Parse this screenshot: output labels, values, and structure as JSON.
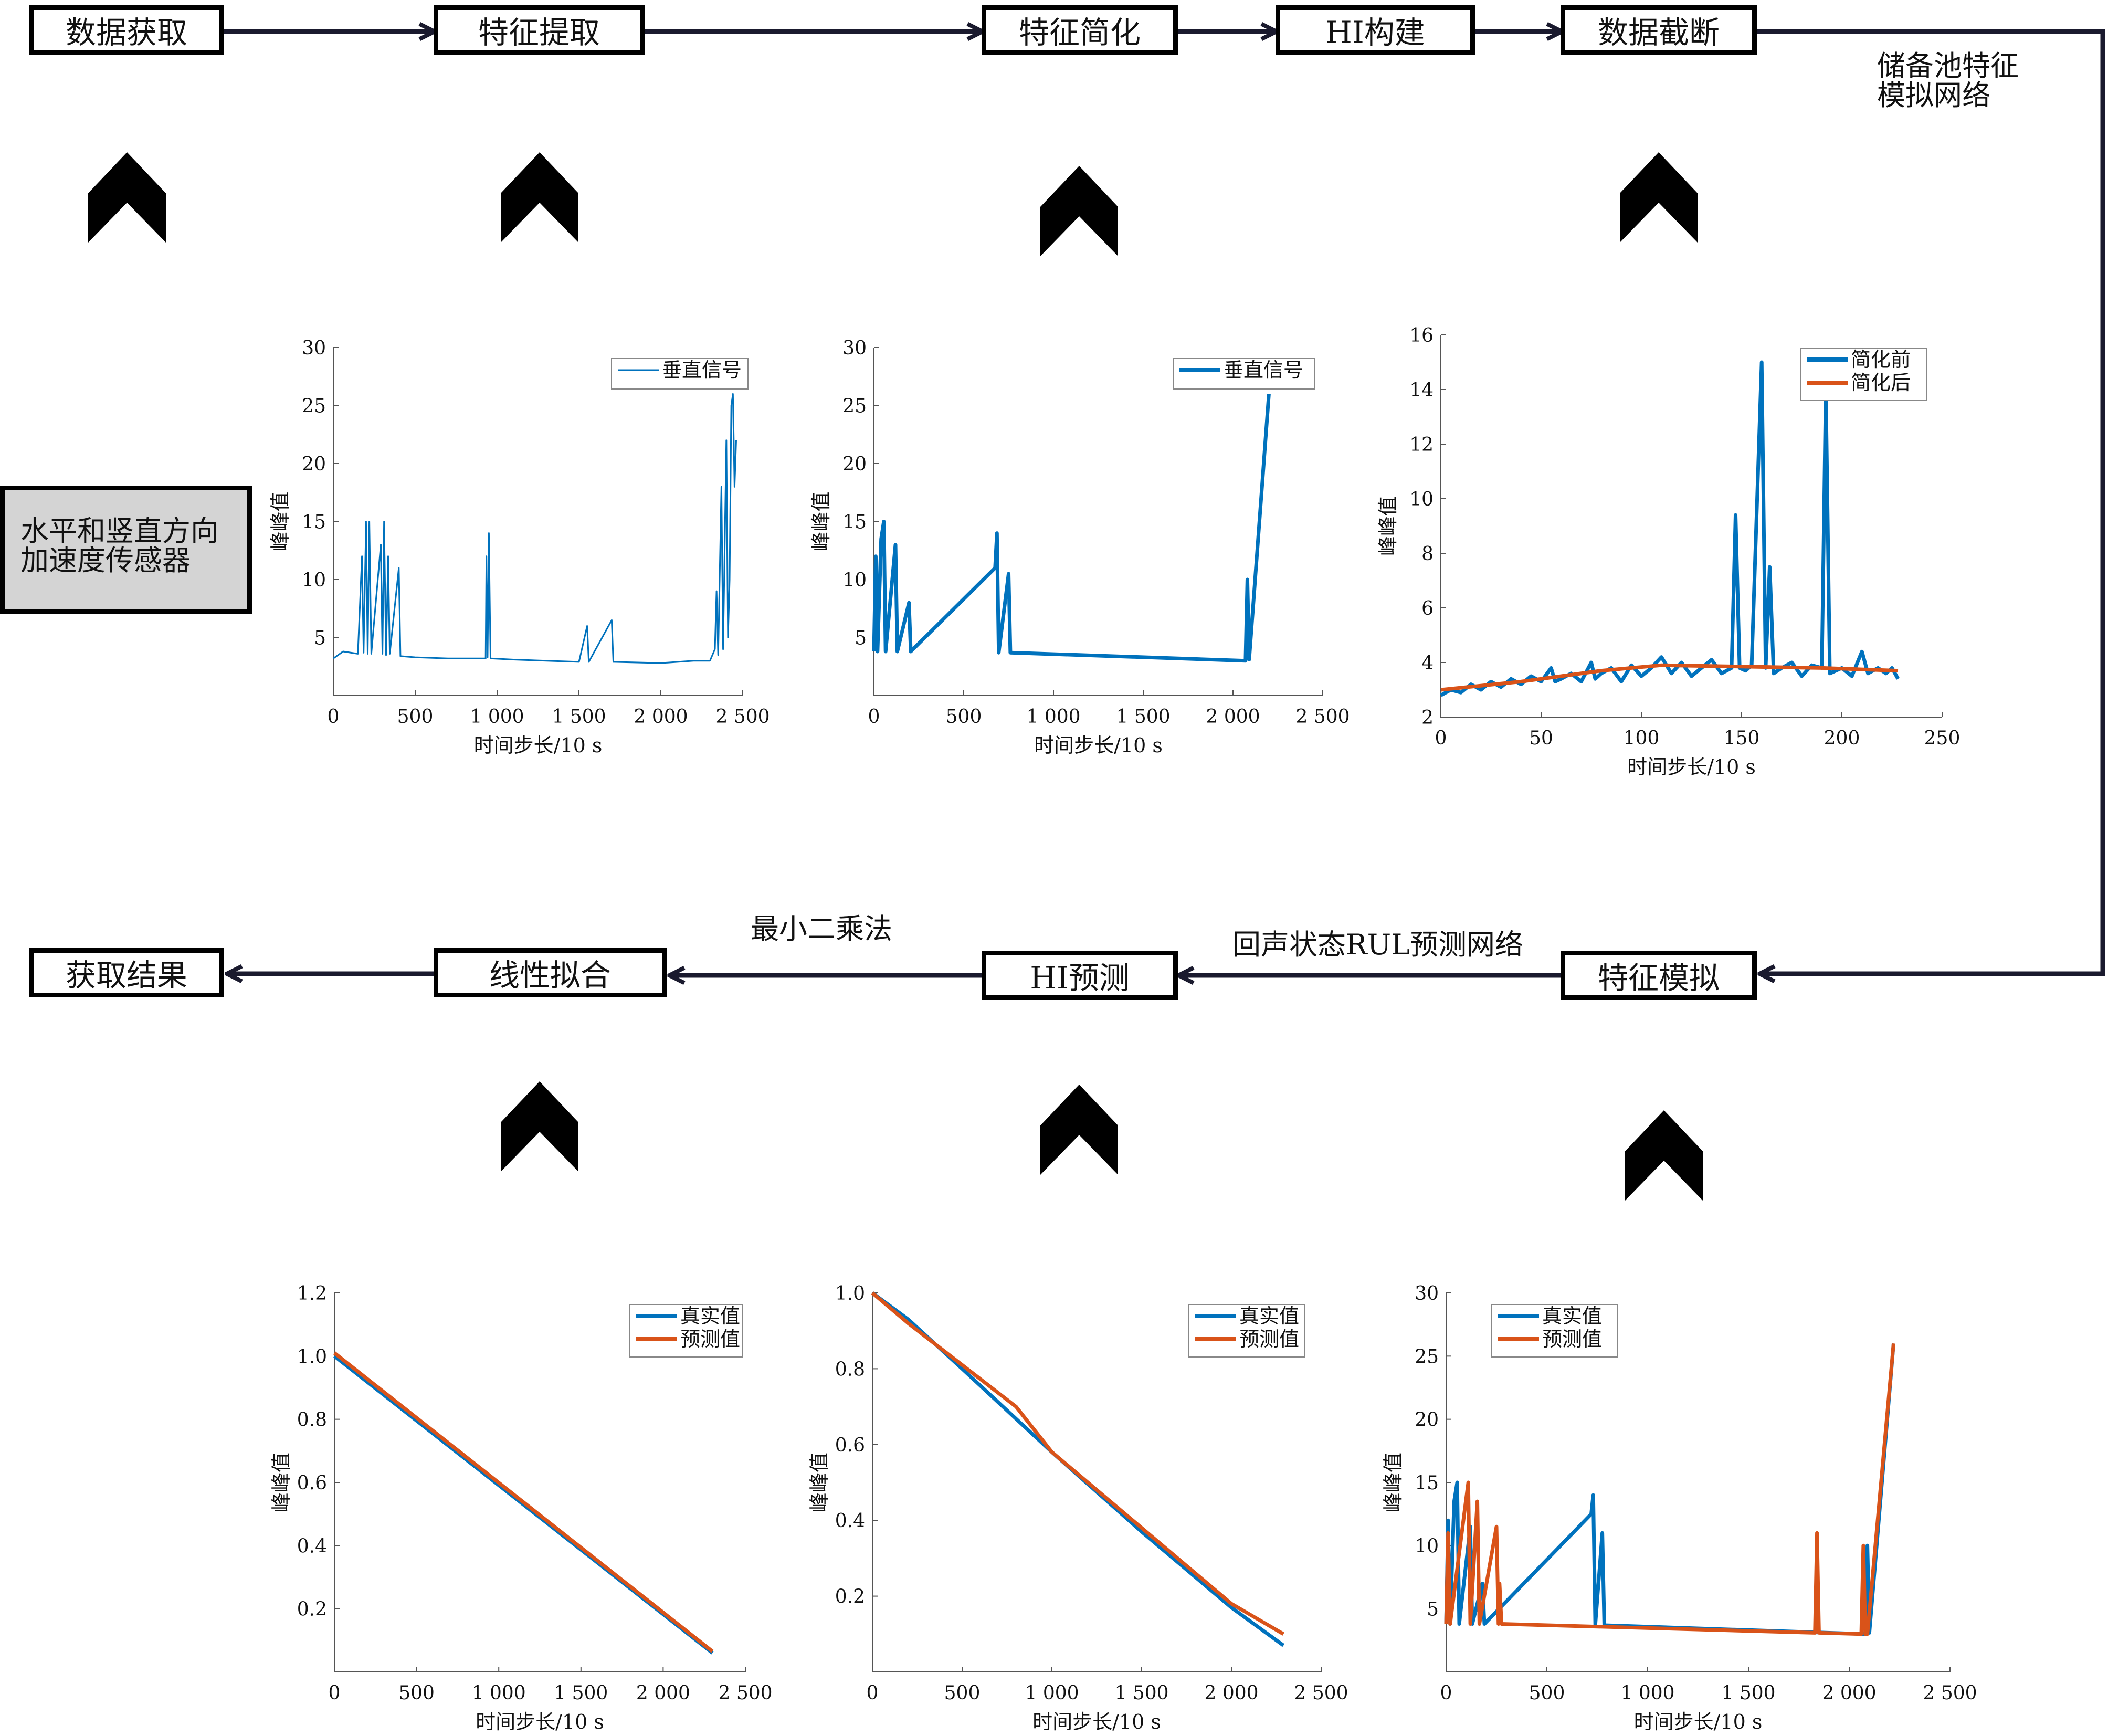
{
  "pipeline": {
    "top": [
      {
        "id": "data-acquire",
        "label": "数据获取"
      },
      {
        "id": "feature-extract",
        "label": "特征提取"
      },
      {
        "id": "feature-simplify",
        "label": "特征简化"
      },
      {
        "id": "hi-build",
        "label": "HI构建"
      },
      {
        "id": "data-truncate",
        "label": "数据截断"
      }
    ],
    "bottom": [
      {
        "id": "result",
        "label": "获取结果"
      },
      {
        "id": "linear-fit",
        "label": "线性拟合"
      },
      {
        "id": "hi-predict",
        "label": "HI预测"
      },
      {
        "id": "feature-sim",
        "label": "特征模拟"
      }
    ]
  },
  "sensor": {
    "line1": "水平和竖直方向",
    "line2": "加速度传感器"
  },
  "labels": {
    "reservoir_line1": "储备池特征",
    "reservoir_line2": "模拟网络",
    "echo_rul": "回声状态RUL预测网络",
    "least_squares": "最小二乘法"
  },
  "chart_data": [
    {
      "id": "raw-signal",
      "type": "line",
      "xlabel": "时间步长/10 s",
      "ylabel": "峰峰值",
      "xlim": [
        0,
        2500
      ],
      "ylim": [
        0,
        30
      ],
      "xticks": [
        "0",
        "500",
        "1 000",
        "1 500",
        "2 000",
        "2 500"
      ],
      "yticks": [
        "5",
        "10",
        "15",
        "20",
        "25",
        "30"
      ],
      "series": [
        {
          "name": "垂直信号",
          "color": "#0072BD",
          "points": [
            [
              0,
              3.2
            ],
            [
              60,
              3.8
            ],
            [
              150,
              3.6
            ],
            [
              175,
              12
            ],
            [
              185,
              3.7
            ],
            [
              200,
              15
            ],
            [
              210,
              3.6
            ],
            [
              220,
              15
            ],
            [
              232,
              3.6
            ],
            [
              290,
              13
            ],
            [
              300,
              3.6
            ],
            [
              310,
              15
            ],
            [
              322,
              3.5
            ],
            [
              335,
              12
            ],
            [
              345,
              3.6
            ],
            [
              400,
              11
            ],
            [
              410,
              3.4
            ],
            [
              500,
              3.3
            ],
            [
              700,
              3.2
            ],
            [
              930,
              3.2
            ],
            [
              935,
              12
            ],
            [
              942,
              3.3
            ],
            [
              950,
              14
            ],
            [
              960,
              3.2
            ],
            [
              1100,
              3.1
            ],
            [
              1500,
              2.9
            ],
            [
              1550,
              6
            ],
            [
              1560,
              2.9
            ],
            [
              1700,
              6.5
            ],
            [
              1710,
              2.9
            ],
            [
              2000,
              2.8
            ],
            [
              2200,
              3
            ],
            [
              2300,
              3
            ],
            [
              2330,
              4
            ],
            [
              2340,
              9
            ],
            [
              2350,
              3.5
            ],
            [
              2370,
              18
            ],
            [
              2380,
              4
            ],
            [
              2400,
              22
            ],
            [
              2410,
              5
            ],
            [
              2420,
              10
            ],
            [
              2430,
              25
            ],
            [
              2440,
              26
            ],
            [
              2450,
              18
            ],
            [
              2460,
              22
            ]
          ]
        }
      ]
    },
    {
      "id": "simplified",
      "type": "line",
      "xlabel": "时间步长/10 s",
      "ylabel": "峰峰值",
      "xlim": [
        0,
        2500
      ],
      "ylim": [
        0,
        30
      ],
      "xticks": [
        "0",
        "500",
        "1 000",
        "1 500",
        "2 000",
        "2 500"
      ],
      "yticks": [
        "5",
        "10",
        "15",
        "20",
        "25",
        "30"
      ],
      "series": [
        {
          "name": "垂直信号",
          "color": "#0072BD",
          "points": [
            [
              0,
              3.8
            ],
            [
              10,
              12
            ],
            [
              20,
              3.8
            ],
            [
              40,
              13.5
            ],
            [
              55,
              15
            ],
            [
              65,
              3.8
            ],
            [
              120,
              13
            ],
            [
              130,
              3.8
            ],
            [
              195,
              8
            ],
            [
              205,
              3.8
            ],
            [
              675,
              11
            ],
            [
              685,
              14
            ],
            [
              695,
              3.7
            ],
            [
              750,
              10.5
            ],
            [
              760,
              3.7
            ],
            [
              2070,
              3
            ],
            [
              2080,
              10
            ],
            [
              2090,
              3.1
            ],
            [
              2200,
              26
            ]
          ]
        }
      ]
    },
    {
      "id": "hi-construct",
      "type": "line",
      "xlabel": "时间步长/10 s",
      "ylabel": "峰峰值",
      "xlim": [
        0,
        250
      ],
      "ylim": [
        2,
        16
      ],
      "xticks": [
        "0",
        "50",
        "100",
        "150",
        "200",
        "250"
      ],
      "yticks": [
        "2",
        "4",
        "6",
        "8",
        "10",
        "12",
        "14",
        "16"
      ],
      "series": [
        {
          "name": "简化前",
          "color": "#0072BD",
          "points": [
            [
              0,
              2.8
            ],
            [
              5,
              3
            ],
            [
              10,
              2.9
            ],
            [
              15,
              3.2
            ],
            [
              20,
              3
            ],
            [
              25,
              3.3
            ],
            [
              30,
              3.1
            ],
            [
              35,
              3.4
            ],
            [
              40,
              3.2
            ],
            [
              45,
              3.5
            ],
            [
              50,
              3.3
            ],
            [
              55,
              3.8
            ],
            [
              57,
              3.3
            ],
            [
              60,
              3.4
            ],
            [
              65,
              3.6
            ],
            [
              70,
              3.3
            ],
            [
              75,
              4
            ],
            [
              77,
              3.4
            ],
            [
              80,
              3.6
            ],
            [
              85,
              3.8
            ],
            [
              90,
              3.3
            ],
            [
              95,
              3.9
            ],
            [
              100,
              3.5
            ],
            [
              105,
              3.8
            ],
            [
              110,
              4.2
            ],
            [
              115,
              3.6
            ],
            [
              120,
              4
            ],
            [
              125,
              3.5
            ],
            [
              130,
              3.8
            ],
            [
              135,
              4.1
            ],
            [
              140,
              3.6
            ],
            [
              145,
              3.8
            ],
            [
              147,
              9.4
            ],
            [
              149,
              3.8
            ],
            [
              152,
              3.7
            ],
            [
              155,
              3.9
            ],
            [
              160,
              15
            ],
            [
              162,
              3.8
            ],
            [
              164,
              7.5
            ],
            [
              166,
              3.6
            ],
            [
              170,
              3.8
            ],
            [
              175,
              4
            ],
            [
              180,
              3.5
            ],
            [
              185,
              3.9
            ],
            [
              190,
              3.8
            ],
            [
              192,
              14
            ],
            [
              194,
              3.6
            ],
            [
              200,
              3.8
            ],
            [
              205,
              3.5
            ],
            [
              210,
              4.4
            ],
            [
              213,
              3.6
            ],
            [
              218,
              3.8
            ],
            [
              222,
              3.6
            ],
            [
              225,
              3.8
            ],
            [
              228,
              3.4
            ]
          ]
        },
        {
          "name": "简化后",
          "color": "#D95319",
          "points": [
            [
              0,
              3
            ],
            [
              40,
              3.3
            ],
            [
              80,
              3.7
            ],
            [
              110,
              3.9
            ],
            [
              150,
              3.85
            ],
            [
              190,
              3.8
            ],
            [
              228,
              3.7
            ]
          ]
        }
      ]
    },
    {
      "id": "feature-fit",
      "type": "line",
      "xlabel": "时间步长/10 s",
      "ylabel": "峰峰值",
      "xlim": [
        0,
        2500
      ],
      "ylim": [
        0,
        30
      ],
      "xticks": [
        "0",
        "500",
        "1 000",
        "1 500",
        "2 000",
        "2 500"
      ],
      "yticks": [
        "5",
        "10",
        "15",
        "20",
        "25",
        "30"
      ],
      "series": [
        {
          "name": "真实值",
          "color": "#0072BD",
          "points": [
            [
              0,
              3.8
            ],
            [
              10,
              12
            ],
            [
              20,
              3.8
            ],
            [
              40,
              13.5
            ],
            [
              55,
              15
            ],
            [
              65,
              3.8
            ],
            [
              120,
              11.5
            ],
            [
              130,
              3.8
            ],
            [
              180,
              7
            ],
            [
              190,
              3.8
            ],
            [
              720,
              12.5
            ],
            [
              730,
              14
            ],
            [
              740,
              3.7
            ],
            [
              775,
              11
            ],
            [
              785,
              3.7
            ],
            [
              2080,
              3
            ],
            [
              2090,
              10
            ],
            [
              2100,
              3.1
            ],
            [
              2220,
              26
            ]
          ]
        },
        {
          "name": "预测值",
          "color": "#D95319",
          "points": [
            [
              0,
              3.8
            ],
            [
              10,
              11
            ],
            [
              20,
              3.8
            ],
            [
              110,
              15
            ],
            [
              120,
              3.8
            ],
            [
              155,
              13.5
            ],
            [
              165,
              3.8
            ],
            [
              250,
              11.5
            ],
            [
              260,
              3.8
            ],
            [
              265,
              7
            ],
            [
              275,
              3.8
            ],
            [
              1830,
              3.1
            ],
            [
              1840,
              11
            ],
            [
              1850,
              3.1
            ],
            [
              2060,
              3
            ],
            [
              2070,
              10
            ],
            [
              2080,
              3
            ],
            [
              2090,
              3
            ],
            [
              2220,
              26
            ]
          ]
        }
      ]
    },
    {
      "id": "hi-predict",
      "type": "line",
      "xlabel": "时间步长/10 s",
      "ylabel": "峰峰值",
      "xlim": [
        0,
        2500
      ],
      "ylim": [
        0,
        1
      ],
      "xticks": [
        "0",
        "500",
        "1 000",
        "1 500",
        "2 000",
        "2 500"
      ],
      "yticks": [
        "0.2",
        "0.4",
        "0.6",
        "0.8",
        "1.0"
      ],
      "series": [
        {
          "name": "真实值",
          "color": "#0072BD",
          "points": [
            [
              0,
              1
            ],
            [
              200,
              0.93
            ],
            [
              500,
              0.8
            ],
            [
              1000,
              0.58
            ],
            [
              1500,
              0.37
            ],
            [
              2000,
              0.17
            ],
            [
              2290,
              0.07
            ]
          ]
        },
        {
          "name": "预测值",
          "color": "#D95319",
          "points": [
            [
              0,
              1
            ],
            [
              200,
              0.92
            ],
            [
              500,
              0.81
            ],
            [
              800,
              0.7
            ],
            [
              1000,
              0.58
            ],
            [
              1500,
              0.38
            ],
            [
              2000,
              0.18
            ],
            [
              2290,
              0.1
            ]
          ]
        }
      ]
    },
    {
      "id": "linear",
      "type": "line",
      "xlabel": "时间步长/10 s",
      "ylabel": "峰峰值",
      "xlim": [
        0,
        2500
      ],
      "ylim": [
        0,
        1.2
      ],
      "xticks": [
        "0",
        "500",
        "1 000",
        "1 500",
        "2 000",
        "2 500"
      ],
      "yticks": [
        "0.2",
        "0.4",
        "0.6",
        "0.8",
        "1.0",
        "1.2"
      ],
      "series": [
        {
          "name": "真实值",
          "color": "#0072BD",
          "points": [
            [
              0,
              1
            ],
            [
              2300,
              0.06
            ]
          ]
        },
        {
          "name": "预测值",
          "color": "#D95319",
          "points": [
            [
              0,
              1.01
            ],
            [
              2300,
              0.065
            ]
          ]
        }
      ]
    }
  ]
}
